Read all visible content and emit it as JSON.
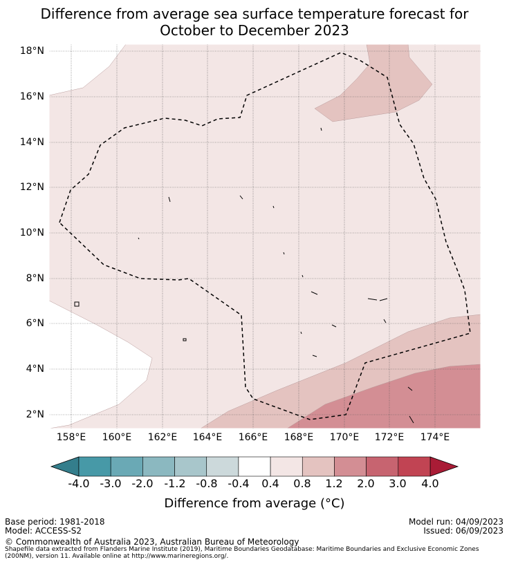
{
  "title": {
    "line1": "Difference from average sea surface temperature forecast for",
    "line2": "October to December 2023"
  },
  "map": {
    "lat_labels": [
      "18°N",
      "16°N",
      "14°N",
      "12°N",
      "10°N",
      "8°N",
      "6°N",
      "4°N",
      "2°N"
    ],
    "lon_labels": [
      "158°E",
      "160°E",
      "162°E",
      "164°E",
      "166°E",
      "168°E",
      "170°E",
      "172°E",
      "174°E"
    ],
    "fill_colors": {
      "land_or_nodata": "#ffffff",
      "band_0_4_0_8": "#f3e6e5",
      "band_0_8_1_2": "#e4c3c0",
      "band_1_2_2_0": "#d38e94",
      "band_2_0_3_0": "#c76470"
    },
    "boundary_style": "dashed"
  },
  "colorbar": {
    "labels": [
      "-4.0",
      "-3.0",
      "-2.0",
      "-1.2",
      "-0.8",
      "-0.4",
      "0.4",
      "0.8",
      "1.2",
      "2.0",
      "3.0",
      "4.0"
    ],
    "colors": [
      "#4799a7",
      "#6aa9b5",
      "#8bb8c0",
      "#a8c6cb",
      "#ccd9db",
      "#ffffff",
      "#f3e6e5",
      "#e4c3c0",
      "#d38e94",
      "#c76470",
      "#c14453"
    ],
    "under_color": "#347e8c",
    "over_color": "#a91c36",
    "title": "Difference from average (°C)"
  },
  "footer": {
    "base_period": "Base period: 1981-2018",
    "model": "Model: ACCESS-S2",
    "model_run": "Model run: 04/09/2023",
    "issued": "Issued: 06/09/2023",
    "copyright": "© Commonwealth of Australia 2023, Australian Bureau of Meteorology",
    "shapefile_line1": "Shapefile data extracted from Flanders Marine Institute (2019), Maritime Boundaries Geodatabase: Maritime Boundaries and Exclusive Economic Zones",
    "shapefile_line2": "(200NM), version 11. Available online at http://www.marineregions.org/."
  }
}
